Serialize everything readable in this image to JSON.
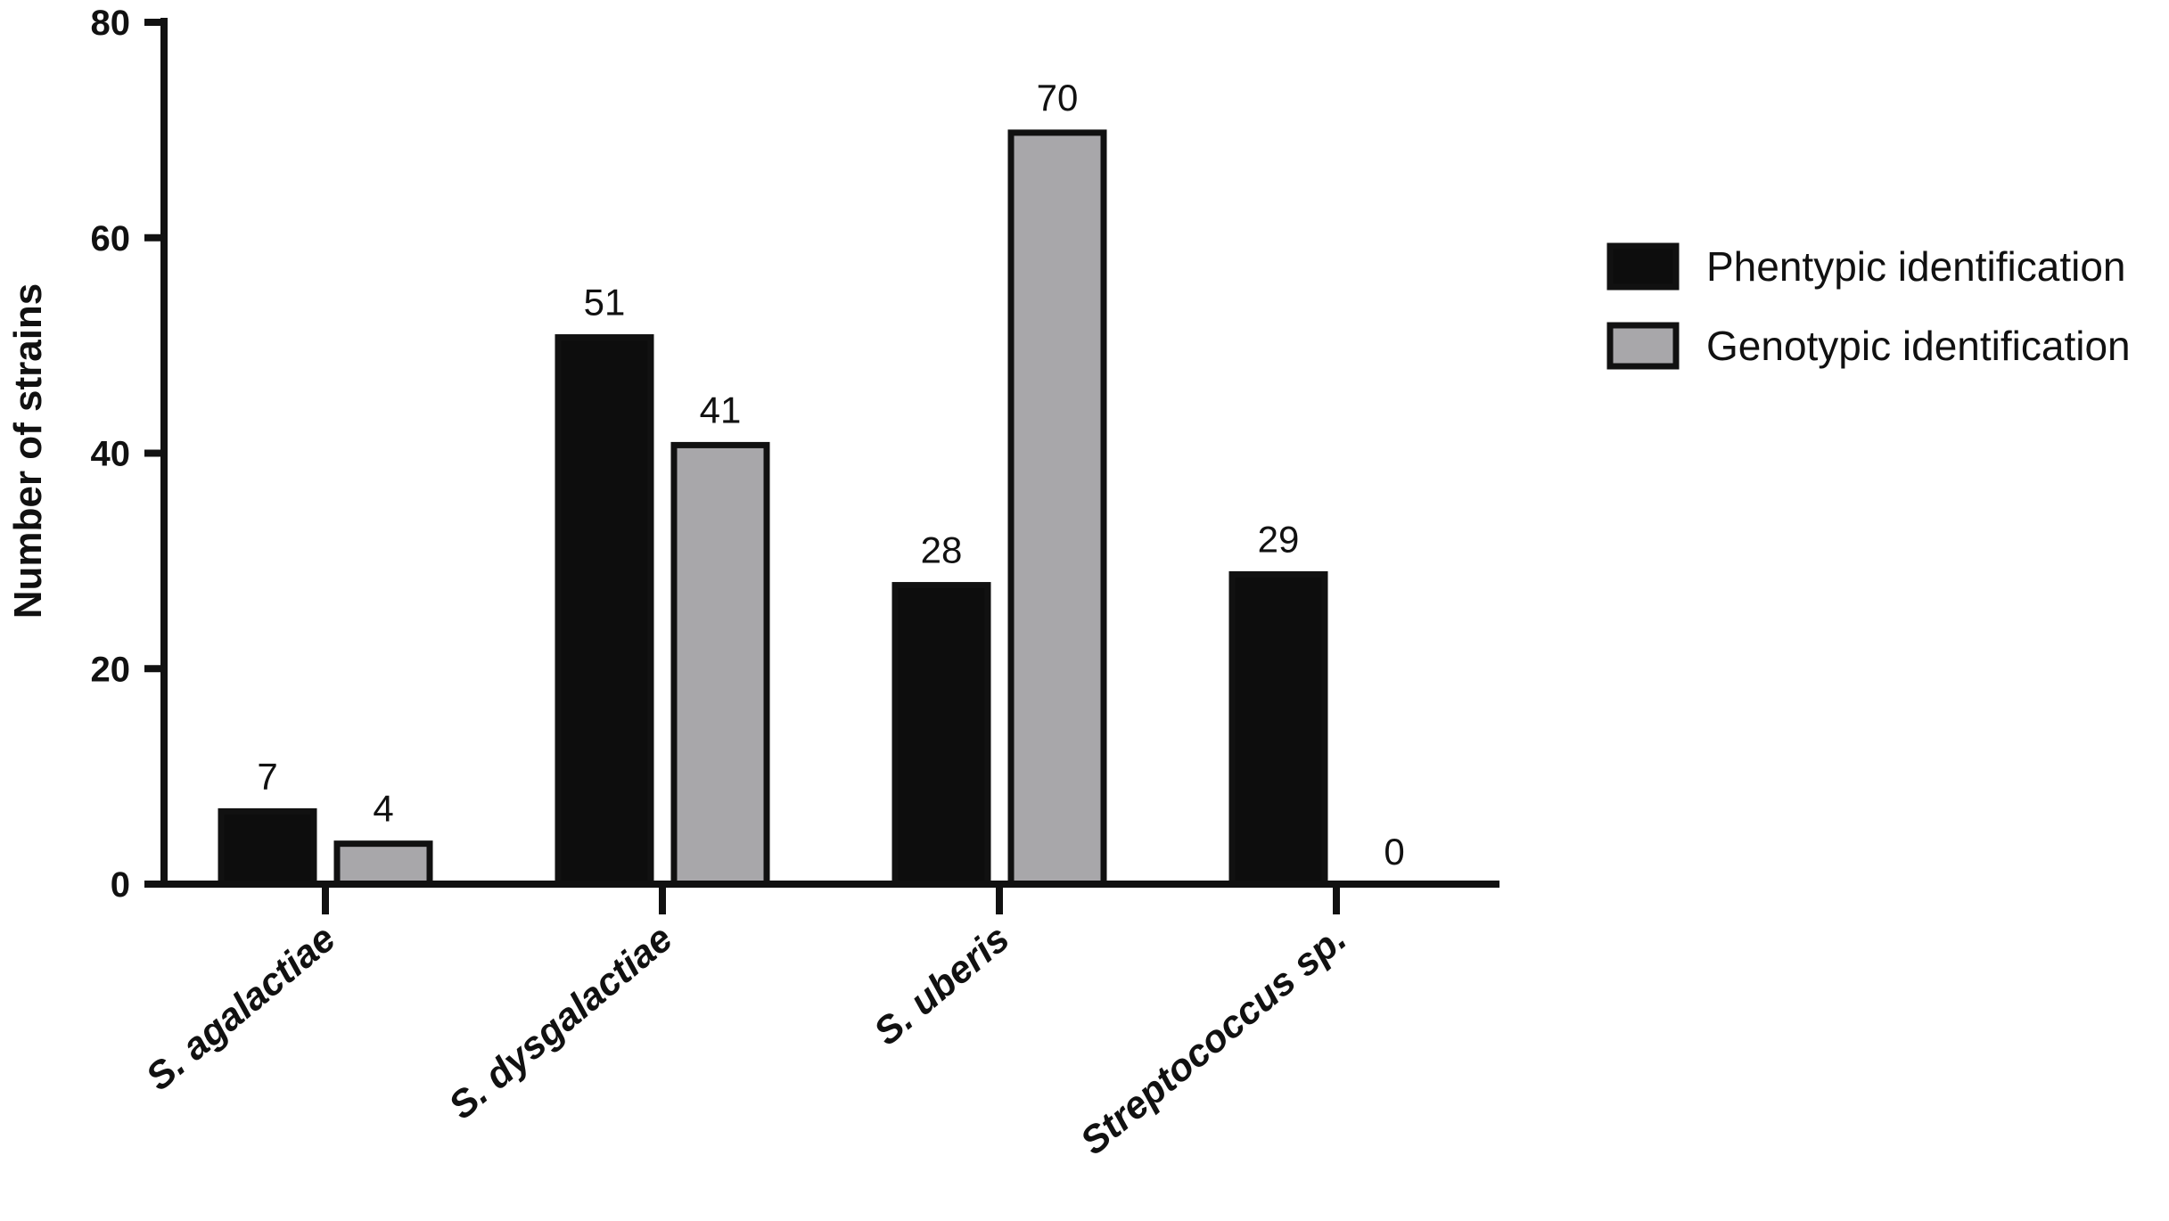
{
  "chart_data": {
    "type": "bar",
    "categories": [
      "S. agalactiae",
      "S. dysgalactiae",
      "S. uberis",
      "Streptococcus sp."
    ],
    "series": [
      {
        "name": "Phentypic identification",
        "values": [
          7,
          51,
          28,
          29
        ],
        "color": "#0d0d0d"
      },
      {
        "name": "Genotypic identification",
        "values": [
          4,
          41,
          70,
          0
        ],
        "color": "#a8a7aa"
      }
    ],
    "xlabel": "",
    "ylabel": "Number of strains",
    "ylim": [
      0,
      80
    ],
    "yticks": [
      0,
      20,
      40,
      60,
      80
    ],
    "grid": false,
    "legend_position": "right",
    "data_labels": true
  }
}
